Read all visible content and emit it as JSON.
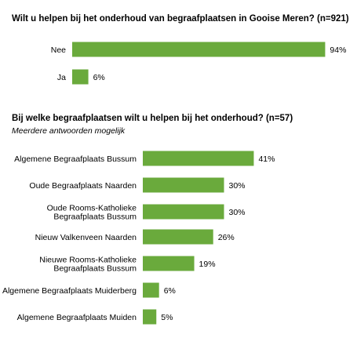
{
  "chart_data": [
    {
      "type": "bar",
      "orientation": "horizontal",
      "title": "Wilt u helpen bij het onderhoud van begraafplaatsen in Gooise Meren? (n=921)",
      "subtitle": "",
      "categories": [
        "Nee",
        "Ja"
      ],
      "values": [
        94,
        6
      ],
      "value_labels": [
        "94%",
        "6%"
      ],
      "xlim": [
        0,
        100
      ],
      "bar_color": "#6aaa3c",
      "grid": false,
      "legend": "none"
    },
    {
      "type": "bar",
      "orientation": "horizontal",
      "title": "Bij welke begraafplaatsen wilt u helpen bij het onderhoud? (n=57)",
      "subtitle": "Meerdere antwoorden mogelijk",
      "categories": [
        "Algemene Begraafplaats Bussum",
        "Oude Begraafplaats Naarden",
        "Oude Rooms-Katholieke\nBegraafplaats Bussum",
        "Nieuw Valkenveen Naarden",
        "Nieuwe Rooms-Katholieke\nBegraafplaats Bussum",
        "Algemene Begraafplaats Muiderberg",
        "Algemene Begraafplaats Muiden"
      ],
      "values": [
        41,
        30,
        30,
        26,
        19,
        6,
        5
      ],
      "value_labels": [
        "41%",
        "30%",
        "30%",
        "26%",
        "19%",
        "6%",
        "5%"
      ],
      "xlim": [
        0,
        100
      ],
      "bar_color": "#6aaa3c",
      "grid": false,
      "legend": "none"
    }
  ]
}
